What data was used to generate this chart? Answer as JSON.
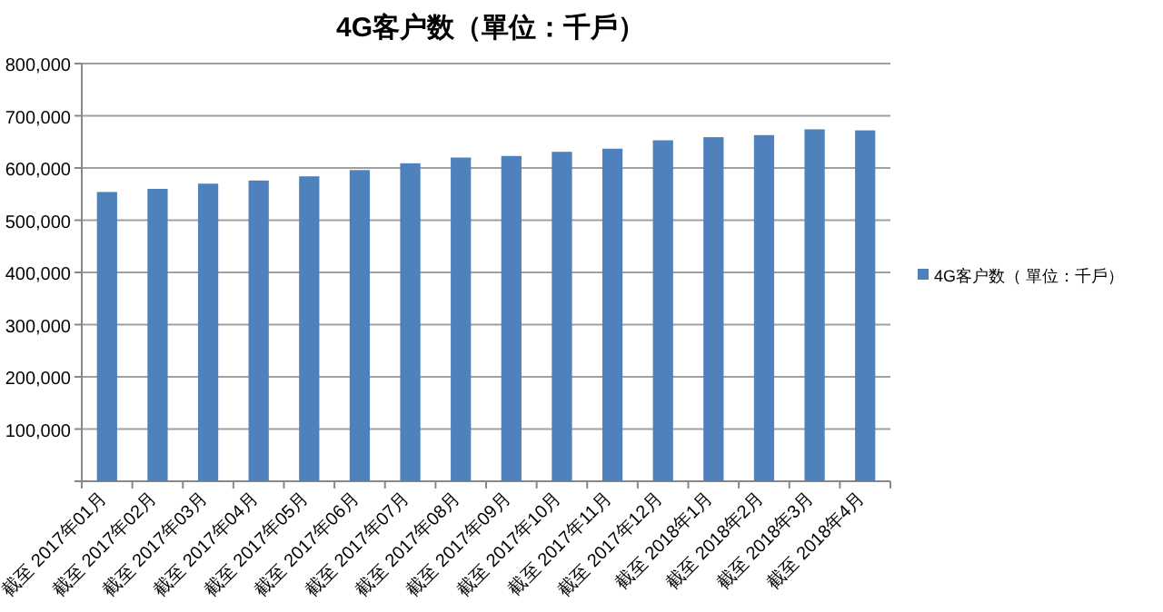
{
  "chart_data": {
    "type": "bar",
    "title": "4G客户数（單位：千戶）",
    "categories": [
      "截至 2017年01月",
      "截至 2017年02月",
      "截至 2017年03月",
      "截至 2017年04月",
      "截至 2017年05月",
      "截至 2017年06月",
      "截至 2017年07月",
      "截至 2017年08月",
      "截至 2017年09月",
      "截至 2017年10月",
      "截至 2017年11月",
      "截至 2017年12月",
      "截至 2018年1月",
      "截至 2018年2月",
      "截至 2018年3月",
      "截至 2018年4月"
    ],
    "series": [
      {
        "name": "4G客户数（ 單位：千戶）",
        "color": "#4f81bd",
        "values": [
          554000,
          560000,
          570000,
          576000,
          584000,
          596000,
          609000,
          620000,
          623000,
          631000,
          637000,
          653000,
          659000,
          663000,
          674000,
          672000
        ]
      }
    ],
    "ylim": [
      0,
      800000
    ],
    "yticks": [
      {
        "value": 0,
        "label": null
      },
      {
        "value": 100000,
        "label": "100,000"
      },
      {
        "value": 200000,
        "label": "200,000"
      },
      {
        "value": 300000,
        "label": "300,000"
      },
      {
        "value": 400000,
        "label": "400,000"
      },
      {
        "value": 500000,
        "label": "500,000"
      },
      {
        "value": 600000,
        "label": "600,000"
      },
      {
        "value": 700000,
        "label": "700,000"
      },
      {
        "value": 800000,
        "label": "800,000"
      }
    ],
    "grid": "y",
    "legend": "right"
  }
}
